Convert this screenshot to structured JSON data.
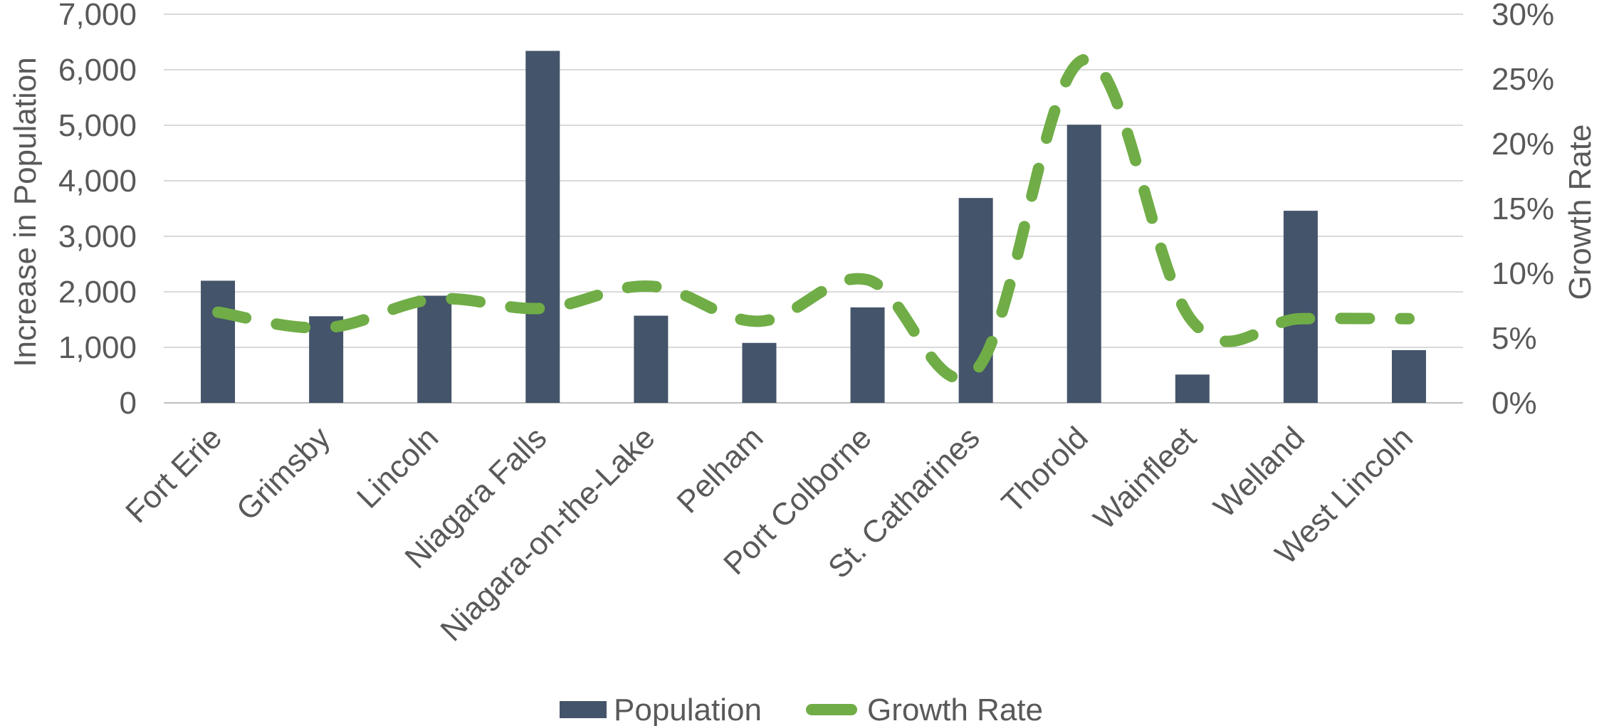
{
  "chart_data": {
    "type": "bar",
    "categories": [
      "Fort Erie",
      "Grimsby",
      "Lincoln",
      "Niagara Falls",
      "Niagara-on-the-Lake",
      "Pelham",
      "Port Colborne",
      "St. Catharines",
      "Thorold",
      "Wainfleet",
      "Welland",
      "West Lincoln"
    ],
    "series": [
      {
        "name": "Population",
        "type": "bar",
        "axis": "left",
        "color": "#44546A",
        "values": [
          2200,
          1560,
          1930,
          6340,
          1570,
          1080,
          1720,
          3690,
          5010,
          510,
          3460,
          950
        ]
      },
      {
        "name": "Growth Rate",
        "type": "line",
        "axis": "right",
        "style": "dashed",
        "smooth": true,
        "color": "#70AD47",
        "values": [
          7.0,
          5.8,
          8.0,
          7.3,
          9.0,
          6.3,
          9.5,
          2.5,
          26.5,
          6.3,
          6.5,
          6.5
        ]
      }
    ],
    "ylabel": "Increase in Population",
    "y2label": "Growth Rate",
    "ylim": [
      0,
      7000
    ],
    "y2lim": [
      0,
      30
    ],
    "yticks": [
      "0",
      "1,000",
      "2,000",
      "3,000",
      "4,000",
      "5,000",
      "6,000",
      "7,000"
    ],
    "y2ticks": [
      "0%",
      "5%",
      "10%",
      "15%",
      "20%",
      "25%",
      "30%"
    ],
    "grid": true,
    "legend_position": "bottom",
    "legend": [
      "Population",
      "Growth Rate"
    ]
  }
}
